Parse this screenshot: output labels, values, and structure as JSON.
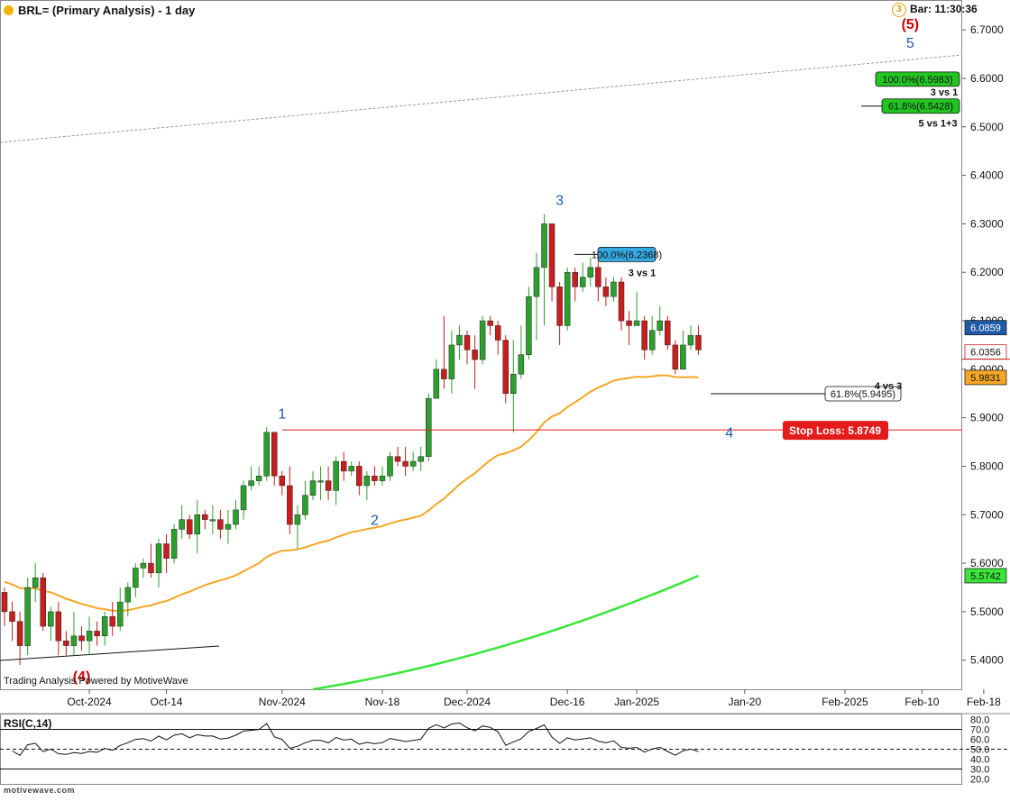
{
  "header": {
    "title": "BRL= (Primary Analysis) - 1 day",
    "bar_time": "Bar: 11:30:36",
    "clock_badge": "3"
  },
  "credit": "Trading Analysis Powered by MotiveWave",
  "site": "motivewave.com",
  "colors": {
    "up": "#2ca02c",
    "down": "#c81e1e",
    "ma50": "#f5a623",
    "ma200": "#39e639",
    "wave": "#1f5aa6",
    "stop": "#e31b1b"
  },
  "chart_data": {
    "type": "candlestick",
    "price_axis": {
      "min": 5.34,
      "max": 6.73,
      "ticks": [
        "5.4000",
        "5.5000",
        "5.6000",
        "5.7000",
        "5.8000",
        "5.9000",
        "6.0000",
        "6.1000",
        "6.2000",
        "6.3000",
        "6.4000",
        "6.5000",
        "6.6000",
        "6.7000"
      ]
    },
    "time_axis": [
      {
        "label": "Oct-2024",
        "slot": 11
      },
      {
        "label": "Oct-14",
        "slot": 21
      },
      {
        "label": "Nov-2024",
        "slot": 36
      },
      {
        "label": "Nov-18",
        "slot": 49
      },
      {
        "label": "Dec-2024",
        "slot": 60
      },
      {
        "label": "Dec-16",
        "slot": 73
      },
      {
        "label": "Jan-2025",
        "slot": 82
      },
      {
        "label": "Jan-20",
        "slot": 96
      },
      {
        "label": "Feb-2025",
        "slot": 109
      },
      {
        "label": "Feb-10",
        "slot": 119
      },
      {
        "label": "Feb-18",
        "slot": 127
      }
    ],
    "candles": [
      [
        5.54,
        5.5,
        5.55,
        5.47
      ],
      [
        5.5,
        5.48,
        5.52,
        5.44
      ],
      [
        5.48,
        5.43,
        5.5,
        5.39
      ],
      [
        5.43,
        5.55,
        5.57,
        5.41
      ],
      [
        5.55,
        5.57,
        5.6,
        5.52
      ],
      [
        5.57,
        5.47,
        5.58,
        5.46
      ],
      [
        5.47,
        5.5,
        5.51,
        5.44
      ],
      [
        5.5,
        5.44,
        5.52,
        5.41
      ],
      [
        5.44,
        5.43,
        5.46,
        5.41
      ],
      [
        5.43,
        5.45,
        5.5,
        5.41
      ],
      [
        5.45,
        5.44,
        5.47,
        5.42
      ],
      [
        5.44,
        5.46,
        5.49,
        5.41
      ],
      [
        5.46,
        5.45,
        5.48,
        5.43
      ],
      [
        5.45,
        5.49,
        5.5,
        5.43
      ],
      [
        5.49,
        5.47,
        5.52,
        5.45
      ],
      [
        5.47,
        5.52,
        5.55,
        5.46
      ],
      [
        5.52,
        5.55,
        5.56,
        5.49
      ],
      [
        5.55,
        5.59,
        5.6,
        5.53
      ],
      [
        5.59,
        5.6,
        5.61,
        5.57
      ],
      [
        5.6,
        5.58,
        5.64,
        5.57
      ],
      [
        5.58,
        5.64,
        5.65,
        5.55
      ],
      [
        5.64,
        5.61,
        5.66,
        5.58
      ],
      [
        5.61,
        5.67,
        5.68,
        5.6
      ],
      [
        5.67,
        5.69,
        5.72,
        5.65
      ],
      [
        5.69,
        5.66,
        5.7,
        5.65
      ],
      [
        5.66,
        5.7,
        5.73,
        5.62
      ],
      [
        5.7,
        5.69,
        5.71,
        5.67
      ],
      [
        5.69,
        5.69,
        5.72,
        5.66
      ],
      [
        5.69,
        5.67,
        5.71,
        5.65
      ],
      [
        5.67,
        5.68,
        5.71,
        5.64
      ],
      [
        5.68,
        5.71,
        5.73,
        5.67
      ],
      [
        5.71,
        5.76,
        5.77,
        5.69
      ],
      [
        5.76,
        5.77,
        5.8,
        5.75
      ],
      [
        5.77,
        5.78,
        5.8,
        5.76
      ],
      [
        5.78,
        5.87,
        5.88,
        5.77
      ],
      [
        5.87,
        5.78,
        5.87,
        5.76
      ],
      [
        5.78,
        5.76,
        5.79,
        5.74
      ],
      [
        5.76,
        5.68,
        5.8,
        5.66
      ],
      [
        5.68,
        5.7,
        5.72,
        5.63
      ],
      [
        5.7,
        5.74,
        5.77,
        5.69
      ],
      [
        5.74,
        5.77,
        5.79,
        5.73
      ],
      [
        5.77,
        5.77,
        5.8,
        5.73
      ],
      [
        5.77,
        5.75,
        5.8,
        5.73
      ],
      [
        5.75,
        5.81,
        5.82,
        5.72
      ],
      [
        5.81,
        5.79,
        5.83,
        5.77
      ],
      [
        5.79,
        5.8,
        5.81,
        5.78
      ],
      [
        5.8,
        5.76,
        5.81,
        5.74
      ],
      [
        5.76,
        5.78,
        5.79,
        5.73
      ],
      [
        5.78,
        5.77,
        5.8,
        5.76
      ],
      [
        5.77,
        5.78,
        5.8,
        5.76
      ],
      [
        5.78,
        5.82,
        5.83,
        5.77
      ],
      [
        5.82,
        5.81,
        5.84,
        5.8
      ],
      [
        5.81,
        5.8,
        5.84,
        5.78
      ],
      [
        5.8,
        5.81,
        5.83,
        5.79
      ],
      [
        5.81,
        5.82,
        5.84,
        5.79
      ],
      [
        5.82,
        5.94,
        5.95,
        5.81
      ],
      [
        5.94,
        6.0,
        6.02,
        5.94
      ],
      [
        6.0,
        5.98,
        6.11,
        5.96
      ],
      [
        5.98,
        6.05,
        6.08,
        5.95
      ],
      [
        6.05,
        6.07,
        6.09,
        6.02
      ],
      [
        6.07,
        6.04,
        6.08,
        6.01
      ],
      [
        6.04,
        6.02,
        6.07,
        5.96
      ],
      [
        6.02,
        6.1,
        6.11,
        6.01
      ],
      [
        6.1,
        6.09,
        6.11,
        6.07
      ],
      [
        6.09,
        6.06,
        6.1,
        6.03
      ],
      [
        6.06,
        5.95,
        6.07,
        5.93
      ],
      [
        5.95,
        5.99,
        6.06,
        5.87
      ],
      [
        5.99,
        6.03,
        6.09,
        5.98
      ],
      [
        6.03,
        6.15,
        6.17,
        6.02
      ],
      [
        6.15,
        6.21,
        6.24,
        6.06
      ],
      [
        6.21,
        6.3,
        6.32,
        6.09
      ],
      [
        6.3,
        6.17,
        6.3,
        6.14
      ],
      [
        6.17,
        6.09,
        6.18,
        6.05
      ],
      [
        6.09,
        6.2,
        6.21,
        6.08
      ],
      [
        6.2,
        6.17,
        6.21,
        6.14
      ],
      [
        6.17,
        6.19,
        6.22,
        6.16
      ],
      [
        6.19,
        6.21,
        6.23,
        6.17
      ],
      [
        6.21,
        6.17,
        6.23,
        6.14
      ],
      [
        6.17,
        6.15,
        6.19,
        6.13
      ],
      [
        6.15,
        6.18,
        6.19,
        6.14
      ],
      [
        6.18,
        6.1,
        6.19,
        6.08
      ],
      [
        6.1,
        6.09,
        6.12,
        6.05
      ],
      [
        6.09,
        6.1,
        6.16,
        6.09
      ],
      [
        6.1,
        6.04,
        6.11,
        6.02
      ],
      [
        6.04,
        6.08,
        6.11,
        6.03
      ],
      [
        6.08,
        6.1,
        6.13,
        6.07
      ],
      [
        6.1,
        6.05,
        6.11,
        6.04
      ],
      [
        6.05,
        6.0,
        6.06,
        5.99
      ],
      [
        6.0,
        6.05,
        6.08,
        6.0
      ],
      [
        6.05,
        6.07,
        6.09,
        6.04
      ],
      [
        6.07,
        6.04,
        6.09,
        6.03
      ]
    ],
    "ma50_last": 5.9831,
    "ma200_last": 5.5742,
    "last_price": 6.0356,
    "high_price_label": 6.0859,
    "stop_loss": {
      "label": "Stop Loss: 5.8749",
      "value": 5.8749
    },
    "fib_boxes": [
      {
        "label": "100.0%(6.2368)",
        "value": 6.2368,
        "style": "blue",
        "note": "3 vs 1"
      },
      {
        "label": "61.8%(5.9495)",
        "value": 5.9495,
        "style": "white",
        "note": "4 vs 3"
      },
      {
        "label": "100.0%(6.5983)",
        "value": 6.5983,
        "style": "green",
        "note": "3 vs 1"
      },
      {
        "label": "61.8%(6.5428)",
        "value": 6.5428,
        "style": "green",
        "note": "5 vs 1+3"
      }
    ],
    "wave_labels": [
      {
        "text": "(4)",
        "slot": 10,
        "price": 5.39,
        "color": "red"
      },
      {
        "text": "1",
        "slot": 36,
        "price": 5.88,
        "color": "blue"
      },
      {
        "text": "2",
        "slot": 48,
        "price": 5.72,
        "color": "blue"
      },
      {
        "text": "3",
        "slot": 72,
        "price": 6.32,
        "color": "blue"
      },
      {
        "text": "4",
        "slot": 94,
        "price": 5.9,
        "color": "blue"
      },
      {
        "text": "5",
        "slot": 117,
        "price": 6.63,
        "color": "blue"
      },
      {
        "text": "(5)",
        "slot": 117,
        "price": 6.69,
        "color": "red"
      }
    ],
    "rsi": {
      "title": "RSI(C,14)",
      "ticks": [
        "80.0",
        "70.0",
        "60.0",
        "50.0",
        "40.0",
        "30.0",
        "20.0"
      ],
      "last": 50
    }
  }
}
